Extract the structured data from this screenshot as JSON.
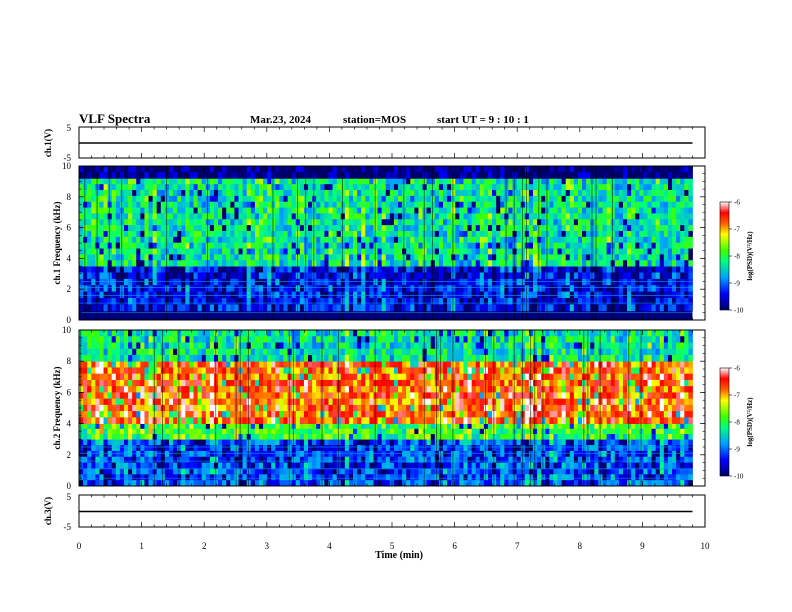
{
  "header": {
    "title": "VLF Spectra",
    "date": "Mar.23, 2024",
    "station": "station=MOS",
    "start": "start UT =   9 : 10 : 1"
  },
  "chart_data": [
    {
      "type": "line",
      "name_label": "ch.1(V)",
      "ylabel": "ch.1(V)",
      "ylim": [
        -5,
        5
      ],
      "yticks": [
        "5",
        "-5"
      ],
      "x": [
        0,
        9.8
      ],
      "values": [
        0,
        0
      ]
    },
    {
      "type": "heatmap",
      "ylabel": "ch.1  Frequency (kHz)",
      "xlim": [
        0,
        10
      ],
      "ylim": [
        0,
        10
      ],
      "yticks": [
        "0",
        "2",
        "4",
        "6",
        "8",
        "10"
      ],
      "data_end_min": 9.8,
      "colorbar": {
        "label": "log(PSD)(V²/Hz)",
        "range": [
          -10,
          -6
        ],
        "ticks": [
          "-6",
          "-7",
          "-8",
          "-9",
          "-10"
        ]
      },
      "bands": [
        {
          "freq_khz": [
            0.6,
            3.5
          ],
          "level": -9.5
        },
        {
          "freq_khz": [
            3.5,
            9.2
          ],
          "level": -8.4
        },
        {
          "freq_khz": [
            9.2,
            10
          ],
          "level": -10
        }
      ]
    },
    {
      "type": "heatmap",
      "ylabel": "ch.2  Frequency (kHz)",
      "xlim": [
        0,
        10
      ],
      "ylim": [
        0,
        10
      ],
      "yticks": [
        "0",
        "2",
        "4",
        "6",
        "8",
        "10"
      ],
      "data_end_min": 9.8,
      "colorbar": {
        "label": "log(PSD)(V²/Hz)",
        "range": [
          -10,
          -6
        ],
        "ticks": [
          "-6",
          "-7",
          "-8",
          "-9",
          "-10"
        ]
      },
      "bands": [
        {
          "freq_khz": [
            0,
            3
          ],
          "level": -9.2
        },
        {
          "freq_khz": [
            3,
            4
          ],
          "level": -8.0
        },
        {
          "freq_khz": [
            4,
            8
          ],
          "level": -6.8
        },
        {
          "freq_khz": [
            8,
            10
          ],
          "level": -8.4
        }
      ]
    },
    {
      "type": "line",
      "ylabel": "ch.3(V)",
      "ylim": [
        -5,
        5
      ],
      "yticks": [
        "5",
        "-5"
      ],
      "x": [
        0,
        9.8
      ],
      "values": [
        0,
        0
      ]
    }
  ],
  "xaxis": {
    "label": "Time (min)",
    "ticks": [
      "0",
      "1",
      "2",
      "3",
      "4",
      "5",
      "6",
      "7",
      "8",
      "9",
      "10"
    ],
    "range": [
      0,
      10
    ]
  }
}
